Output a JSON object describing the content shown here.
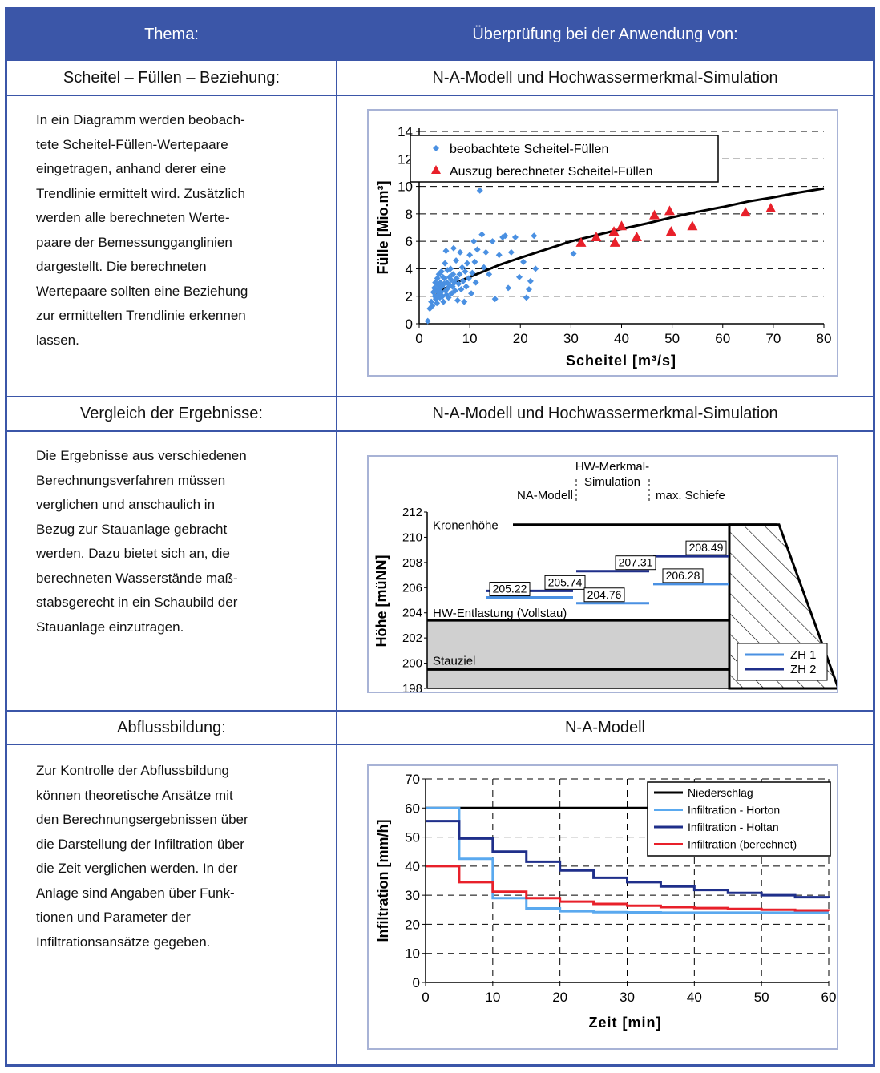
{
  "header": {
    "col1": "Thema:",
    "col2": "Überprüfung bei der Anwendung von:"
  },
  "rows": [
    {
      "topic": "Scheitel – Füllen – Beziehung:",
      "application": "N-A-Modell und Hochwassermerkmal-Simulation",
      "lines": [
        "In ein Diagramm werden beobach-",
        "tete Scheitel-Füllen-Wertepaare",
        "eingetragen,  anhand derer eine",
        "Trendlinie ermittelt wird. Zusätzlich",
        "werden alle berechneten Werte-",
        "paare der Bemessungganglinien",
        "dargestellt. Die berechneten",
        "Wertepaare sollten eine Beziehung",
        "zur ermittelten Trendlinie erkennen",
        "lassen."
      ]
    },
    {
      "topic": "Vergleich der Ergebnisse:",
      "application": "N-A-Modell und Hochwassermerkmal-Simulation",
      "lines": [
        "Die Ergebnisse aus verschiedenen",
        "Berechnungsverfahren müssen",
        "verglichen und anschaulich in",
        "Bezug zur Stauanlage gebracht",
        "werden. Dazu bietet sich an, die",
        "berechneten Wasserstände maß-",
        "stabsgerecht in ein Schaubild der",
        "Stauanlage einzutragen."
      ]
    },
    {
      "topic": "Abflussbildung:",
      "application": "N-A-Modell",
      "lines": [
        "Zur Kontrolle der Abflussbildung",
        "können theoretische Ansätze mit",
        "den Berechnungsergebnissen über",
        "die Darstellung der Infiltration über",
        "die Zeit verglichen werden. In der",
        "Anlage sind Angaben über Funk-",
        "tionen und Parameter der",
        "Infiltrationsansätze gegeben."
      ]
    }
  ],
  "chart_data": [
    {
      "type": "scatter",
      "xlabel": "Scheitel [m³/s]",
      "ylabel": "Fülle [Mio.m³]",
      "xlim": [
        0,
        80
      ],
      "ylim": [
        0,
        14
      ],
      "xticks": [
        "0",
        "10",
        "20",
        "30",
        "40",
        "50",
        "60",
        "70",
        "80"
      ],
      "yticks": [
        "0",
        "2",
        "4",
        "6",
        "8",
        "10",
        "12",
        "14"
      ],
      "grid": "horizontal-dashed",
      "legend_position": "top",
      "colors": {
        "observed": "#4a90e2",
        "computed": "#e8202a",
        "trend": "#000000"
      },
      "series": [
        {
          "name": "beobachtete Scheitel-Füllen",
          "marker": "diamond",
          "points": [
            [
              1.7,
              0.2
            ],
            [
              2.1,
              1.1
            ],
            [
              2.4,
              1.6
            ],
            [
              2.6,
              1.3
            ],
            [
              2.8,
              2.3
            ],
            [
              3.0,
              2.6
            ],
            [
              3.1,
              2.0
            ],
            [
              3.2,
              3.0
            ],
            [
              3.3,
              1.8
            ],
            [
              3.4,
              2.4
            ],
            [
              3.5,
              1.5
            ],
            [
              3.6,
              3.3
            ],
            [
              3.7,
              2.8
            ],
            [
              3.8,
              2.1
            ],
            [
              3.9,
              3.6
            ],
            [
              4.0,
              2.5
            ],
            [
              4.1,
              1.9
            ],
            [
              4.2,
              3.0
            ],
            [
              4.3,
              2.3
            ],
            [
              4.4,
              3.8
            ],
            [
              4.5,
              2.7
            ],
            [
              4.6,
              2.0
            ],
            [
              4.7,
              3.4
            ],
            [
              4.8,
              1.6
            ],
            [
              4.9,
              2.9
            ],
            [
              5.0,
              3.3
            ],
            [
              5.1,
              4.4
            ],
            [
              5.2,
              2.4
            ],
            [
              5.3,
              5.3
            ],
            [
              5.4,
              2.1
            ],
            [
              5.5,
              3.0
            ],
            [
              5.6,
              3.9
            ],
            [
              5.7,
              2.6
            ],
            [
              5.8,
              1.9
            ],
            [
              6.0,
              3.4
            ],
            [
              6.1,
              2.8
            ],
            [
              6.2,
              4.0
            ],
            [
              6.3,
              3.2
            ],
            [
              6.4,
              2.2
            ],
            [
              6.6,
              2.7
            ],
            [
              6.7,
              3.6
            ],
            [
              6.8,
              5.5
            ],
            [
              7.0,
              3.0
            ],
            [
              7.1,
              2.4
            ],
            [
              7.3,
              4.6
            ],
            [
              7.4,
              3.3
            ],
            [
              7.6,
              1.7
            ],
            [
              7.8,
              2.9
            ],
            [
              8.0,
              3.6
            ],
            [
              8.1,
              5.2
            ],
            [
              8.3,
              2.5
            ],
            [
              8.5,
              4.1
            ],
            [
              8.7,
              3.1
            ],
            [
              8.9,
              1.6
            ],
            [
              9.1,
              3.8
            ],
            [
              9.3,
              2.7
            ],
            [
              9.5,
              4.4
            ],
            [
              9.8,
              3.3
            ],
            [
              10.0,
              5.0
            ],
            [
              10.3,
              2.2
            ],
            [
              10.5,
              3.7
            ],
            [
              10.8,
              6.0
            ],
            [
              11.0,
              4.5
            ],
            [
              11.2,
              3.0
            ],
            [
              11.5,
              5.4
            ],
            [
              12.0,
              9.7
            ],
            [
              12.4,
              6.5
            ],
            [
              12.8,
              4.1
            ],
            [
              13.2,
              5.2
            ],
            [
              13.8,
              3.6
            ],
            [
              14.5,
              6.0
            ],
            [
              15.0,
              1.8
            ],
            [
              15.8,
              5.0
            ],
            [
              16.5,
              6.3
            ],
            [
              17.0,
              6.4
            ],
            [
              17.6,
              2.6
            ],
            [
              18.2,
              5.2
            ],
            [
              19.0,
              6.3
            ],
            [
              19.8,
              3.4
            ],
            [
              20.6,
              4.5
            ],
            [
              21.2,
              1.9
            ],
            [
              21.7,
              2.5
            ],
            [
              22.0,
              3.1
            ],
            [
              22.7,
              6.4
            ],
            [
              23.0,
              4.0
            ],
            [
              30.5,
              5.1
            ]
          ]
        },
        {
          "name": "Auszug berechneter Scheitel-Füllen",
          "marker": "triangle",
          "points": [
            [
              32,
              5.9
            ],
            [
              35,
              6.3
            ],
            [
              38.5,
              6.7
            ],
            [
              38.7,
              5.9
            ],
            [
              40,
              7.1
            ],
            [
              43,
              6.3
            ],
            [
              46.5,
              7.9
            ],
            [
              49.5,
              8.2
            ],
            [
              49.8,
              6.7
            ],
            [
              54,
              7.1
            ],
            [
              64.5,
              8.1
            ],
            [
              69.5,
              8.4
            ]
          ]
        },
        {
          "name": "",
          "marker": "none",
          "points": [
            [
              3,
              2.0
            ],
            [
              5,
              2.55
            ],
            [
              8,
              3.1
            ],
            [
              12,
              3.7
            ],
            [
              16,
              4.3
            ],
            [
              20,
              4.8
            ],
            [
              25,
              5.4
            ],
            [
              30,
              6.0
            ],
            [
              35,
              6.45
            ],
            [
              40,
              6.9
            ],
            [
              45,
              7.3
            ],
            [
              50,
              7.75
            ],
            [
              55,
              8.15
            ],
            [
              60,
              8.5
            ],
            [
              65,
              8.9
            ],
            [
              70,
              9.2
            ],
            [
              75,
              9.55
            ],
            [
              80,
              9.85
            ]
          ]
        }
      ]
    },
    {
      "type": "diagram",
      "ylabel": "Höhe [müNN]",
      "ylim": [
        198,
        212
      ],
      "yticks": [
        "198",
        "200",
        "202",
        "204",
        "206",
        "208",
        "210",
        "212"
      ],
      "labels": {
        "kronen": "Kronenhöhe",
        "hwe": "HW-Entlastung (Vollstau)",
        "stau": "Stauziel",
        "na": "NA-Modell",
        "hwm": "HW-Merkmal-\nSimulation",
        "hwm1": "HW-Merkmal-",
        "hwm2": "Simulation",
        "max": "max. Schiefe"
      },
      "levels": {
        "crest": 211,
        "spillway": 203.4,
        "stauziel": 199.5
      },
      "colors": {
        "ZH 1": "#4a90e2",
        "ZH 2": "#1f2f8a",
        "water": "#d0d0d0"
      },
      "series": [
        {
          "name": "ZH 1",
          "values": [
            {
              "method": "NA-Modell",
              "value": 205.22
            },
            {
              "method": "HW-Merkmal-Simulation",
              "value": 204.76
            },
            {
              "method": "max. Schiefe",
              "value": 206.28
            }
          ]
        },
        {
          "name": "ZH 2",
          "values": [
            {
              "method": "NA-Modell",
              "value": 205.74
            },
            {
              "method": "HW-Merkmal-Simulation",
              "value": 207.31
            },
            {
              "method": "max. Schiefe",
              "value": 208.49
            }
          ]
        }
      ],
      "value_labels": [
        "205.22",
        "205.74",
        "204.76",
        "207.31",
        "208.49",
        "206.28"
      ],
      "legend_position": "bottom-right"
    },
    {
      "type": "line",
      "xlabel": "Zeit [min]",
      "ylabel": "Infiltration [mm/h]",
      "xlim": [
        0,
        60
      ],
      "ylim": [
        0,
        70
      ],
      "xticks": [
        "0",
        "10",
        "20",
        "30",
        "40",
        "50",
        "60"
      ],
      "yticks": [
        "0",
        "10",
        "20",
        "30",
        "40",
        "50",
        "60",
        "70"
      ],
      "grid": "dashed",
      "legend_position": "top-right",
      "series": [
        {
          "name": "Niederschlag",
          "color": "#000000",
          "step": true,
          "x": [
            0,
            60
          ],
          "y": [
            60,
            60
          ]
        },
        {
          "name": "Infiltration - Horton",
          "color": "#5aa9ef",
          "step": true,
          "x": [
            0,
            5,
            10,
            15,
            20,
            25,
            30,
            35,
            40,
            45,
            50,
            55,
            60
          ],
          "y": [
            60,
            42.5,
            29,
            25.5,
            24.5,
            24.2,
            24.1,
            24.0,
            24.0,
            24.0,
            24.0,
            24.0,
            24.0
          ]
        },
        {
          "name": "Infiltration - Holtan",
          "color": "#1f2f8a",
          "step": true,
          "x": [
            0,
            5,
            10,
            15,
            20,
            25,
            30,
            35,
            40,
            45,
            50,
            55,
            60
          ],
          "y": [
            55.5,
            49.5,
            45,
            41.5,
            38.5,
            36,
            34.5,
            33,
            31.8,
            30.8,
            30,
            29.3,
            29
          ]
        },
        {
          "name": "Infiltration (berechnet)",
          "color": "#e8202a",
          "step": true,
          "x": [
            0,
            5,
            10,
            15,
            20,
            25,
            30,
            35,
            40,
            45,
            50,
            55,
            60
          ],
          "y": [
            40,
            34.5,
            31.2,
            29,
            27.8,
            27,
            26.4,
            25.9,
            25.6,
            25.3,
            25,
            24.8,
            24.6
          ]
        }
      ]
    }
  ]
}
